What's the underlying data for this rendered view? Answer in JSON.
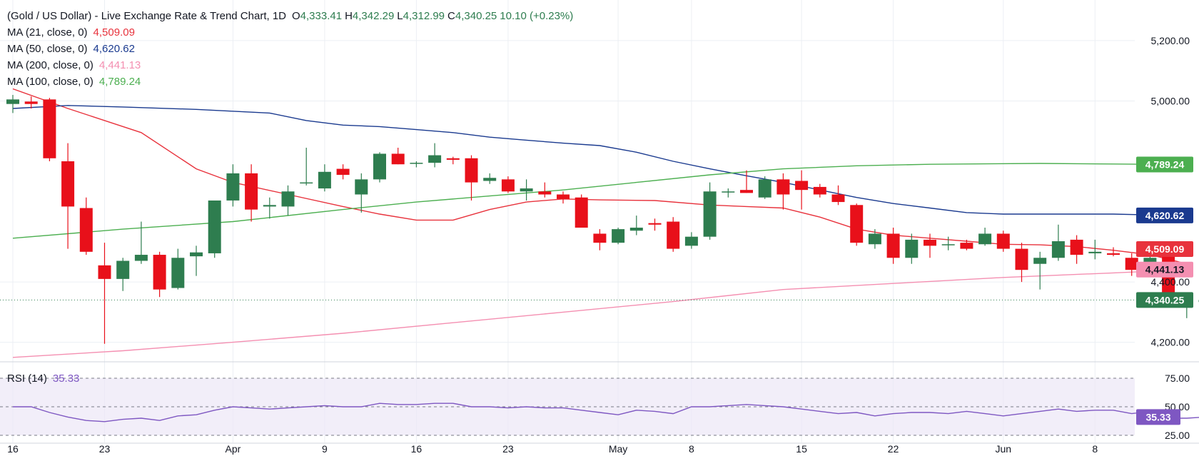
{
  "header": {
    "title": "(Gold / US Dollar) - Live Exchange Rate & Trend Chart, 1D",
    "o_label": "O",
    "o_value": "4,333.41",
    "h_label": "H",
    "h_value": "4,342.29",
    "l_label": "L",
    "l_value": "4,312.99",
    "c_label": "C",
    "c_value": "4,340.25",
    "change": "10.10 (+0.23%)"
  },
  "legend": [
    {
      "label": "MA (21, close, 0)",
      "value": "4,509.09",
      "color": "#e8323c"
    },
    {
      "label": "MA (50, close, 0)",
      "value": "4,620.62",
      "color": "#1a3a8f"
    },
    {
      "label": "MA (200, close, 0)",
      "value": "4,441.13",
      "color": "#f48fb1"
    },
    {
      "label": "MA (100, close, 0)",
      "value": "4,789.24",
      "color": "#4caf50"
    }
  ],
  "price_axis": {
    "ticks": [
      {
        "value": 5200,
        "label": "5,200.00"
      },
      {
        "value": 5000,
        "label": "5,000.00"
      },
      {
        "value": 4400,
        "label": "4,400.00"
      },
      {
        "value": 4200,
        "label": "4,200.00"
      }
    ],
    "badges": [
      {
        "value": 4789.24,
        "label": "4,789.24",
        "color": "#4caf50"
      },
      {
        "value": 4620.62,
        "label": "4,620.62",
        "color": "#1a3a8f"
      },
      {
        "value": 4509.09,
        "label": "4,509.09",
        "color": "#e8323c"
      },
      {
        "value": 4441.13,
        "label": "4,441.13",
        "color": "#f48fb1"
      },
      {
        "value": 4340.25,
        "label": "4,340.25",
        "color": "#2e7d4f"
      }
    ]
  },
  "rsi": {
    "label": "RSI (14)",
    "value": "35.33",
    "color": "#7e57c2",
    "ticks": [
      {
        "value": 75,
        "label": "75.00"
      },
      {
        "value": 50,
        "label": "50.00"
      },
      {
        "value": 25,
        "label": "25.00"
      }
    ],
    "values": [
      50,
      50,
      45,
      41,
      38,
      37,
      39,
      40,
      38,
      42,
      43,
      47,
      50,
      49,
      48,
      49,
      50,
      51,
      50,
      50,
      53,
      52,
      52,
      53,
      53,
      50,
      50,
      49,
      50,
      49,
      49,
      47,
      45,
      43,
      47,
      46,
      44,
      50,
      50,
      51,
      52,
      51,
      50,
      48,
      46,
      44,
      45,
      42,
      44,
      45,
      45,
      44,
      46,
      44,
      42,
      44,
      46,
      48,
      46,
      47,
      47,
      44,
      46,
      40,
      40,
      41
    ]
  },
  "colors": {
    "up": "#2e7d4f",
    "down": "#e8101a",
    "grid": "#eceff4",
    "last_line": "#2e7d4f"
  },
  "chart_data": {
    "type": "candlestick",
    "x_tick_labels": [
      {
        "index": 0,
        "label": "16"
      },
      {
        "index": 5,
        "label": "23"
      },
      {
        "index": 12,
        "label": "Apr"
      },
      {
        "index": 17,
        "label": "9"
      },
      {
        "index": 22,
        "label": "16"
      },
      {
        "index": 27,
        "label": "23"
      },
      {
        "index": 33,
        "label": "May"
      },
      {
        "index": 37,
        "label": "8"
      },
      {
        "index": 43,
        "label": "15"
      },
      {
        "index": 48,
        "label": "22"
      },
      {
        "index": 54,
        "label": "Jun"
      },
      {
        "index": 59,
        "label": "8"
      }
    ],
    "y_range": [
      4140,
      5240
    ],
    "candles": [
      {
        "o": 4990,
        "h": 5020,
        "l": 4960,
        "c": 5005
      },
      {
        "o": 4998,
        "h": 5015,
        "l": 4975,
        "c": 4990
      },
      {
        "o": 5005,
        "h": 5010,
        "l": 4800,
        "c": 4810
      },
      {
        "o": 4800,
        "h": 4860,
        "l": 4510,
        "c": 4650
      },
      {
        "o": 4645,
        "h": 4680,
        "l": 4490,
        "c": 4500
      },
      {
        "o": 4455,
        "h": 4530,
        "l": 4195,
        "c": 4410
      },
      {
        "o": 4410,
        "h": 4480,
        "l": 4370,
        "c": 4470
      },
      {
        "o": 4470,
        "h": 4600,
        "l": 4460,
        "c": 4490
      },
      {
        "o": 4490,
        "h": 4500,
        "l": 4350,
        "c": 4375
      },
      {
        "o": 4380,
        "h": 4510,
        "l": 4375,
        "c": 4480
      },
      {
        "o": 4485,
        "h": 4520,
        "l": 4420,
        "c": 4498
      },
      {
        "o": 4495,
        "h": 4660,
        "l": 4480,
        "c": 4670
      },
      {
        "o": 4670,
        "h": 4790,
        "l": 4650,
        "c": 4760
      },
      {
        "o": 4760,
        "h": 4790,
        "l": 4600,
        "c": 4640
      },
      {
        "o": 4650,
        "h": 4680,
        "l": 4610,
        "c": 4655
      },
      {
        "o": 4650,
        "h": 4720,
        "l": 4620,
        "c": 4700
      },
      {
        "o": 4730,
        "h": 4845,
        "l": 4720,
        "c": 4730
      },
      {
        "o": 4710,
        "h": 4790,
        "l": 4700,
        "c": 4765
      },
      {
        "o": 4775,
        "h": 4790,
        "l": 4740,
        "c": 4755
      },
      {
        "o": 4690,
        "h": 4760,
        "l": 4630,
        "c": 4740
      },
      {
        "o": 4740,
        "h": 4830,
        "l": 4730,
        "c": 4825
      },
      {
        "o": 4825,
        "h": 4845,
        "l": 4790,
        "c": 4790
      },
      {
        "o": 4795,
        "h": 4800,
        "l": 4780,
        "c": 4795
      },
      {
        "o": 4795,
        "h": 4860,
        "l": 4780,
        "c": 4820
      },
      {
        "o": 4810,
        "h": 4815,
        "l": 4790,
        "c": 4805
      },
      {
        "o": 4810,
        "h": 4820,
        "l": 4670,
        "c": 4730
      },
      {
        "o": 4735,
        "h": 4760,
        "l": 4725,
        "c": 4745
      },
      {
        "o": 4740,
        "h": 4750,
        "l": 4695,
        "c": 4700
      },
      {
        "o": 4700,
        "h": 4740,
        "l": 4670,
        "c": 4710
      },
      {
        "o": 4700,
        "h": 4730,
        "l": 4680,
        "c": 4690
      },
      {
        "o": 4690,
        "h": 4700,
        "l": 4660,
        "c": 4675
      },
      {
        "o": 4680,
        "h": 4690,
        "l": 4580,
        "c": 4580
      },
      {
        "o": 4560,
        "h": 4575,
        "l": 4505,
        "c": 4530
      },
      {
        "o": 4530,
        "h": 4580,
        "l": 4525,
        "c": 4575
      },
      {
        "o": 4570,
        "h": 4620,
        "l": 4555,
        "c": 4580
      },
      {
        "o": 4595,
        "h": 4610,
        "l": 4570,
        "c": 4590
      },
      {
        "o": 4600,
        "h": 4615,
        "l": 4500,
        "c": 4510
      },
      {
        "o": 4520,
        "h": 4565,
        "l": 4510,
        "c": 4550
      },
      {
        "o": 4550,
        "h": 4730,
        "l": 4540,
        "c": 4700
      },
      {
        "o": 4700,
        "h": 4710,
        "l": 4680,
        "c": 4700
      },
      {
        "o": 4705,
        "h": 4770,
        "l": 4695,
        "c": 4695
      },
      {
        "o": 4680,
        "h": 4750,
        "l": 4675,
        "c": 4740
      },
      {
        "o": 4740,
        "h": 4760,
        "l": 4640,
        "c": 4690
      },
      {
        "o": 4735,
        "h": 4770,
        "l": 4640,
        "c": 4705
      },
      {
        "o": 4715,
        "h": 4725,
        "l": 4680,
        "c": 4690
      },
      {
        "o": 4690,
        "h": 4720,
        "l": 4655,
        "c": 4665
      },
      {
        "o": 4655,
        "h": 4660,
        "l": 4520,
        "c": 4530
      },
      {
        "o": 4525,
        "h": 4575,
        "l": 4510,
        "c": 4560
      },
      {
        "o": 4560,
        "h": 4580,
        "l": 4460,
        "c": 4480
      },
      {
        "o": 4480,
        "h": 4560,
        "l": 4460,
        "c": 4540
      },
      {
        "o": 4540,
        "h": 4560,
        "l": 4480,
        "c": 4520
      },
      {
        "o": 4525,
        "h": 4550,
        "l": 4505,
        "c": 4525
      },
      {
        "o": 4530,
        "h": 4540,
        "l": 4505,
        "c": 4510
      },
      {
        "o": 4525,
        "h": 4580,
        "l": 4520,
        "c": 4560
      },
      {
        "o": 4560,
        "h": 4570,
        "l": 4500,
        "c": 4510
      },
      {
        "o": 4510,
        "h": 4530,
        "l": 4400,
        "c": 4440
      },
      {
        "o": 4460,
        "h": 4500,
        "l": 4375,
        "c": 4480
      },
      {
        "o": 4480,
        "h": 4590,
        "l": 4470,
        "c": 4535
      },
      {
        "o": 4540,
        "h": 4555,
        "l": 4460,
        "c": 4490
      },
      {
        "o": 4495,
        "h": 4540,
        "l": 4475,
        "c": 4500
      },
      {
        "o": 4495,
        "h": 4515,
        "l": 4485,
        "c": 4490
      },
      {
        "o": 4480,
        "h": 4495,
        "l": 4420,
        "c": 4440
      },
      {
        "o": 4435,
        "h": 4520,
        "l": 4430,
        "c": 4480
      },
      {
        "o": 4485,
        "h": 4490,
        "l": 4315,
        "c": 4325
      },
      {
        "o": 4325,
        "h": 4355,
        "l": 4280,
        "c": 4330
      },
      {
        "o": 4333.41,
        "h": 4342.29,
        "l": 4312.99,
        "c": 4340.25
      }
    ],
    "moving_averages": [
      {
        "name": "MA (21, close, 0)",
        "color": "#e8323c",
        "points": [
          [
            0,
            5040
          ],
          [
            3,
            4975
          ],
          [
            7,
            4895
          ],
          [
            10,
            4775
          ],
          [
            12,
            4730
          ],
          [
            15,
            4690
          ],
          [
            18,
            4650
          ],
          [
            20,
            4625
          ],
          [
            22,
            4605
          ],
          [
            24,
            4605
          ],
          [
            26,
            4640
          ],
          [
            28,
            4665
          ],
          [
            30,
            4675
          ],
          [
            32,
            4672
          ],
          [
            35,
            4670
          ],
          [
            38,
            4655
          ],
          [
            40,
            4650
          ],
          [
            42,
            4645
          ],
          [
            44,
            4615
          ],
          [
            46,
            4575
          ],
          [
            48,
            4555
          ],
          [
            50,
            4545
          ],
          [
            52,
            4535
          ],
          [
            54,
            4525
          ],
          [
            56,
            4523
          ],
          [
            58,
            4517
          ],
          [
            60,
            4505
          ],
          [
            62,
            4490
          ],
          [
            64,
            4460
          ]
        ]
      },
      {
        "name": "MA (50, close, 0)",
        "color": "#1a3a8f",
        "points": [
          [
            0,
            4975
          ],
          [
            3,
            4985
          ],
          [
            6,
            4980
          ],
          [
            10,
            4972
          ],
          [
            14,
            4960
          ],
          [
            16,
            4935
          ],
          [
            18,
            4920
          ],
          [
            20,
            4915
          ],
          [
            22,
            4905
          ],
          [
            24,
            4895
          ],
          [
            26,
            4880
          ],
          [
            28,
            4870
          ],
          [
            30,
            4860
          ],
          [
            32,
            4852
          ],
          [
            34,
            4830
          ],
          [
            36,
            4800
          ],
          [
            38,
            4775
          ],
          [
            40,
            4752
          ],
          [
            42,
            4730
          ],
          [
            44,
            4705
          ],
          [
            46,
            4680
          ],
          [
            48,
            4660
          ],
          [
            50,
            4645
          ],
          [
            52,
            4630
          ],
          [
            54,
            4625
          ],
          [
            56,
            4625
          ],
          [
            58,
            4625
          ],
          [
            60,
            4625
          ],
          [
            62,
            4622
          ],
          [
            64,
            4620
          ]
        ]
      },
      {
        "name": "MA (200, close, 0)",
        "color": "#f48fb1",
        "points": [
          [
            0,
            4150
          ],
          [
            6,
            4172
          ],
          [
            12,
            4200
          ],
          [
            18,
            4230
          ],
          [
            24,
            4265
          ],
          [
            30,
            4300
          ],
          [
            36,
            4335
          ],
          [
            42,
            4375
          ],
          [
            48,
            4395
          ],
          [
            54,
            4415
          ],
          [
            60,
            4430
          ],
          [
            64,
            4441
          ]
        ]
      },
      {
        "name": "MA (100, close, 0)",
        "color": "#4caf50",
        "points": [
          [
            0,
            4545
          ],
          [
            6,
            4575
          ],
          [
            12,
            4600
          ],
          [
            18,
            4640
          ],
          [
            22,
            4665
          ],
          [
            26,
            4685
          ],
          [
            30,
            4705
          ],
          [
            34,
            4730
          ],
          [
            38,
            4755
          ],
          [
            42,
            4775
          ],
          [
            46,
            4785
          ],
          [
            50,
            4790
          ],
          [
            56,
            4793
          ],
          [
            60,
            4791
          ],
          [
            64,
            4789
          ]
        ]
      }
    ]
  }
}
